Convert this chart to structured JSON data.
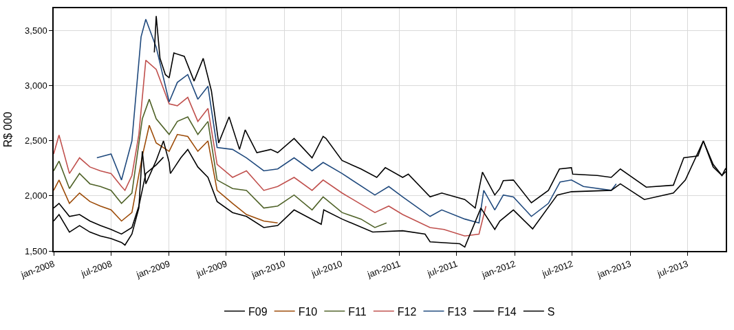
{
  "chart_data": {
    "type": "line",
    "ylabel": "R$ 000",
    "xlim": [
      "2008-01-01",
      "2013-10-31"
    ],
    "xticks": [
      {
        "value": "2008-01-01",
        "label": "jan-2008"
      },
      {
        "value": "2008-07-01",
        "label": "jul-2008"
      },
      {
        "value": "2009-01-01",
        "label": "jan-2009"
      },
      {
        "value": "2009-07-01",
        "label": "jul-2009"
      },
      {
        "value": "2010-01-01",
        "label": "jan-2010"
      },
      {
        "value": "2010-07-01",
        "label": "jul-2010"
      },
      {
        "value": "2011-01-01",
        "label": "jan-2011"
      },
      {
        "value": "2011-07-01",
        "label": "jul-2011"
      },
      {
        "value": "2012-01-01",
        "label": "jan-2012"
      },
      {
        "value": "2012-07-01",
        "label": "jul-2012"
      },
      {
        "value": "2013-01-01",
        "label": "jan-2013"
      },
      {
        "value": "2013-07-01",
        "label": "jul-2013"
      }
    ],
    "ylim": [
      1500,
      3700
    ],
    "yticks": [
      {
        "value": 1500,
        "label": "1,500"
      },
      {
        "value": 2000,
        "label": "2,000"
      },
      {
        "value": 2500,
        "label": "2,500"
      },
      {
        "value": 3000,
        "label": "3,000"
      },
      {
        "value": 3500,
        "label": "3,500"
      }
    ],
    "grid": true,
    "legend": "bottom",
    "marker": "none",
    "line_style": "solid",
    "series": [
      {
        "name": "F09",
        "color": "#000000",
        "x": [
          "2008-01-01",
          "2008-01-18",
          "2008-02-20",
          "2008-03-23",
          "2008-04-25",
          "2008-05-28",
          "2008-07-01",
          "2008-08-03",
          "2008-09-05",
          "2008-09-27",
          "2008-10-19",
          "2008-11-21",
          "2008-12-14"
        ],
        "values": [
          1889,
          1931,
          1813,
          1830,
          1771,
          1730,
          1695,
          1653,
          1712,
          1907,
          2202,
          2280,
          2350
        ]
      },
      {
        "name": "F10",
        "color": "#9c4a06",
        "x": [
          "2008-01-01",
          "2008-01-18",
          "2008-02-20",
          "2008-03-23",
          "2008-04-25",
          "2008-05-28",
          "2008-07-01",
          "2008-08-03",
          "2008-09-05",
          "2008-10-08",
          "2008-10-30",
          "2008-11-21",
          "2009-01-01",
          "2009-01-27",
          "2009-03-01",
          "2009-04-02",
          "2009-05-04",
          "2009-06-02",
          "2009-07-21",
          "2009-09-03",
          "2009-10-28",
          "2009-12-11"
        ],
        "values": [
          2049,
          2143,
          1931,
          2025,
          1948,
          1907,
          1872,
          1771,
          1848,
          2361,
          2639,
          2479,
          2403,
          2556,
          2538,
          2403,
          2497,
          2049,
          1931,
          1830,
          1771,
          1754
        ]
      },
      {
        "name": "F11",
        "color": "#4f6228",
        "x": [
          "2008-01-01",
          "2008-01-18",
          "2008-02-20",
          "2008-03-23",
          "2008-04-25",
          "2008-05-28",
          "2008-07-01",
          "2008-08-03",
          "2008-09-05",
          "2008-10-08",
          "2008-10-30",
          "2008-11-21",
          "2009-01-01",
          "2009-01-27",
          "2009-03-01",
          "2009-04-02",
          "2009-05-04",
          "2009-06-02",
          "2009-07-21",
          "2009-09-03",
          "2009-10-28",
          "2009-12-11",
          "2010-02-01",
          "2010-03-30",
          "2010-05-04",
          "2010-07-03",
          "2010-09-01",
          "2010-10-15",
          "2010-11-21"
        ],
        "values": [
          2226,
          2314,
          2066,
          2202,
          2108,
          2084,
          2049,
          1931,
          2025,
          2698,
          2875,
          2698,
          2556,
          2674,
          2715,
          2556,
          2674,
          2143,
          2066,
          2049,
          1889,
          1907,
          2007,
          1872,
          1990,
          1848,
          1789,
          1712,
          1754
        ]
      },
      {
        "name": "F12",
        "color": "#c0504d",
        "x": [
          "2008-01-01",
          "2008-01-18",
          "2008-02-20",
          "2008-03-23",
          "2008-04-25",
          "2008-05-28",
          "2008-07-01",
          "2008-08-03",
          "2008-08-14",
          "2008-09-05",
          "2008-09-27",
          "2008-10-19",
          "2008-11-21",
          "2009-01-01",
          "2009-01-27",
          "2009-03-01",
          "2009-04-02",
          "2009-05-04",
          "2009-06-02",
          "2009-07-21",
          "2009-09-03",
          "2009-10-28",
          "2009-12-11",
          "2010-02-01",
          "2010-03-30",
          "2010-05-04",
          "2010-07-03",
          "2010-10-15",
          "2010-11-28",
          "2011-01-11",
          "2011-04-08",
          "2011-05-22",
          "2011-07-27",
          "2011-09-10",
          "2011-10-02"
        ],
        "values": [
          2379,
          2550,
          2202,
          2344,
          2261,
          2226,
          2202,
          2084,
          2049,
          2184,
          2556,
          3229,
          3146,
          2833,
          2816,
          2892,
          2674,
          2792,
          2285,
          2167,
          2226,
          2049,
          2084,
          2167,
          2049,
          2143,
          2025,
          1848,
          1907,
          1830,
          1712,
          1695,
          1636,
          1653,
          1907
        ]
      },
      {
        "name": "F13",
        "color": "#1f497d",
        "x": [
          "2008-05-17",
          "2008-07-01",
          "2008-08-03",
          "2008-09-05",
          "2008-10-04",
          "2008-10-19",
          "2008-11-21",
          "2009-01-01",
          "2009-01-27",
          "2009-03-01",
          "2009-04-02",
          "2009-05-04",
          "2009-06-02",
          "2009-07-21",
          "2009-09-03",
          "2009-10-28",
          "2009-12-11",
          "2010-02-01",
          "2010-03-30",
          "2010-05-04",
          "2010-07-03",
          "2010-10-15",
          "2010-11-28",
          "2011-01-11",
          "2011-04-08",
          "2011-05-15",
          "2011-07-27",
          "2011-09-10",
          "2011-09-25",
          "2011-10-30",
          "2011-11-26",
          "2011-12-28",
          "2012-02-23",
          "2012-04-17",
          "2012-05-24",
          "2012-06-29",
          "2012-08-06",
          "2012-11-02",
          "2012-11-18"
        ],
        "values": [
          2344,
          2379,
          2143,
          2497,
          3441,
          3600,
          3347,
          2851,
          3028,
          3099,
          2875,
          2993,
          2438,
          2420,
          2344,
          2226,
          2243,
          2344,
          2226,
          2302,
          2202,
          2007,
          2084,
          1990,
          1813,
          1872,
          1789,
          1754,
          2049,
          1872,
          2007,
          1990,
          1813,
          1931,
          2125,
          2143,
          2084,
          2049,
          2108
        ]
      },
      {
        "name": "F14",
        "color": "#000000",
        "x": [
          "2008-11-15",
          "2008-11-21",
          "2008-12-03",
          "2008-12-20",
          "2009-01-01",
          "2009-01-16",
          "2009-02-18",
          "2009-03-21",
          "2009-04-19",
          "2009-05-15",
          "2009-06-07",
          "2009-07-10",
          "2009-08-12",
          "2009-08-30",
          "2009-10-06",
          "2009-11-19",
          "2009-12-11",
          "2010-02-01",
          "2010-03-30",
          "2010-05-04",
          "2010-05-13",
          "2010-07-03",
          "2010-09-01",
          "2010-10-21",
          "2010-11-17",
          "2011-01-11",
          "2011-01-29",
          "2011-04-08",
          "2011-05-15",
          "2011-07-27",
          "2011-08-29",
          "2011-09-21",
          "2011-10-30",
          "2011-11-15",
          "2011-11-26",
          "2011-12-28",
          "2012-02-23",
          "2012-04-17",
          "2012-05-22",
          "2012-06-29",
          "2012-07-03",
          "2012-09-19",
          "2012-11-02",
          "2012-12-01",
          "2013-02-21",
          "2013-05-18",
          "2013-06-20",
          "2013-08-04",
          "2013-08-21",
          "2013-09-21",
          "2013-10-19",
          "2013-10-31"
        ],
        "values": [
          3300,
          3630,
          3246,
          3099,
          3069,
          3294,
          3264,
          3040,
          3246,
          2951,
          2479,
          2715,
          2420,
          2597,
          2391,
          2420,
          2391,
          2520,
          2344,
          2538,
          2520,
          2320,
          2243,
          2167,
          2255,
          2167,
          2196,
          1990,
          2025,
          1966,
          1889,
          2214,
          2007,
          2066,
          2137,
          2143,
          1937,
          2049,
          2243,
          2255,
          2196,
          2184,
          2167,
          2243,
          2078,
          2096,
          2344,
          2361,
          2497,
          2285,
          2184,
          2250
        ]
      },
      {
        "name": "S",
        "color": "#000000",
        "x": [
          "2008-01-01",
          "2008-01-18",
          "2008-02-20",
          "2008-03-23",
          "2008-04-25",
          "2008-05-28",
          "2008-07-01",
          "2008-08-03",
          "2008-08-14",
          "2008-09-05",
          "2008-09-27",
          "2008-10-08",
          "2008-10-19",
          "2008-11-21",
          "2008-12-14",
          "2009-01-01",
          "2009-01-05",
          "2009-02-07",
          "2009-03-01",
          "2009-04-02",
          "2009-05-04",
          "2009-06-02",
          "2009-07-21",
          "2009-09-03",
          "2009-10-28",
          "2009-12-11",
          "2010-02-01",
          "2010-04-28",
          "2010-05-06",
          "2010-07-03",
          "2010-10-08",
          "2011-01-11",
          "2011-03-23",
          "2011-04-08",
          "2011-07-11",
          "2011-07-27",
          "2011-09-16",
          "2011-10-30",
          "2011-11-15",
          "2011-12-28",
          "2012-02-27",
          "2012-05-15",
          "2012-06-29",
          "2012-11-02",
          "2012-12-01",
          "2013-02-15",
          "2013-05-18",
          "2013-06-25",
          "2013-08-21",
          "2013-09-21",
          "2013-10-19",
          "2013-10-31"
        ],
        "values": [
          1771,
          1830,
          1671,
          1730,
          1671,
          1636,
          1612,
          1577,
          1553,
          1653,
          1889,
          2403,
          2108,
          2320,
          2497,
          2302,
          2202,
          2344,
          2420,
          2261,
          2167,
          1948,
          1848,
          1813,
          1712,
          1730,
          1872,
          1742,
          1872,
          1789,
          1671,
          1683,
          1653,
          1583,
          1565,
          1535,
          1889,
          1695,
          1771,
          1872,
          1700,
          2007,
          2037,
          2049,
          2108,
          1966,
          2025,
          2143,
          2497,
          2261,
          2184,
          2220
        ]
      }
    ]
  }
}
